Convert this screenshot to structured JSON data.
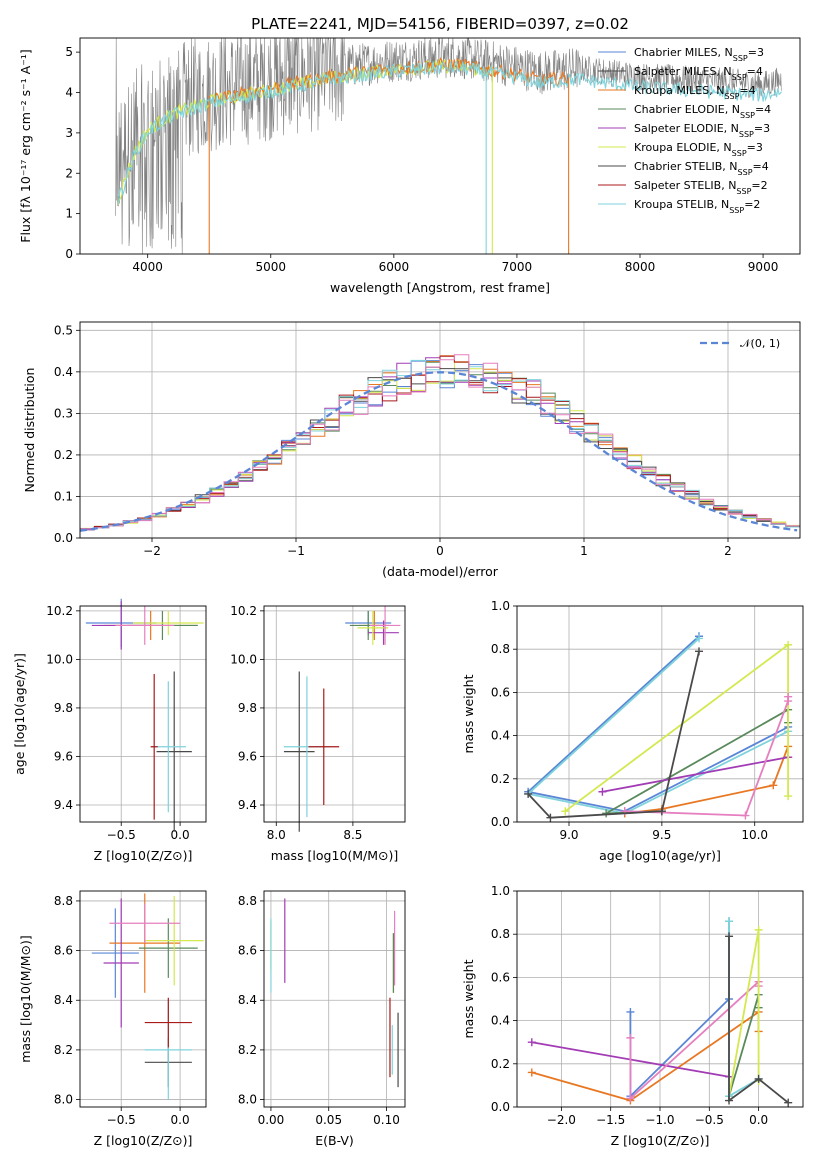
{
  "figure_title": "PLATE=2241, MJD=54156, FIBERID=0397, z=0.02",
  "colors": {
    "gray": "#808080",
    "series": [
      "#5b86d6",
      "#e87722",
      "#5a8a5c",
      "#a23cb5",
      "#d4e84f",
      "#4a4a4a",
      "#aa1a1a",
      "#7fd3dc",
      "#e57fbf"
    ],
    "normal": "#5b86d6",
    "grid": "#b0b0b0"
  },
  "chart_data": [
    {
      "id": "spectrum",
      "type": "line",
      "title": "PLATE=2241, MJD=54156, FIBERID=0397, z=0.02",
      "xlabel": "wavelength [Angstrom, rest frame]",
      "ylabel": "Flux [fλ 10⁻¹⁷ erg cm⁻² s⁻¹ A⁻¹]",
      "xlim": [
        3450,
        9300
      ],
      "ylim": [
        0,
        5.35
      ],
      "xticks": [
        4000,
        5000,
        6000,
        7000,
        8000,
        9000
      ],
      "yticks": [
        0,
        1,
        2,
        3,
        4,
        5
      ],
      "grid": false,
      "legend_position": "top-right",
      "data_range": [
        3740,
        9150
      ],
      "envelope": [
        [
          3750,
          2.3
        ],
        [
          3900,
          3.1
        ],
        [
          4000,
          3.3
        ],
        [
          4200,
          3.7
        ],
        [
          4500,
          4.0
        ],
        [
          5000,
          4.3
        ],
        [
          5500,
          4.6
        ],
        [
          6000,
          4.8
        ],
        [
          6500,
          4.9
        ],
        [
          6900,
          4.7
        ],
        [
          7200,
          4.5
        ],
        [
          7500,
          4.6
        ],
        [
          8000,
          4.4
        ],
        [
          8500,
          4.3
        ],
        [
          9000,
          4.2
        ],
        [
          9150,
          4.3
        ]
      ],
      "legend": [
        {
          "label": "Chabrier MILES, N",
          "sub": "SSP",
          "suffix": "=3",
          "color": "#5b86d6"
        },
        {
          "label": "Salpeter MILES, N",
          "sub": "SSP",
          "suffix": "=4",
          "color": "#4a4a4a"
        },
        {
          "label": "Kroupa MILES, N",
          "sub": "SSP",
          "suffix": "=4",
          "color": "#e87722"
        },
        {
          "label": "Chabrier ELODIE, N",
          "sub": "SSP",
          "suffix": "=4",
          "color": "#5a8a5c"
        },
        {
          "label": "Salpeter ELODIE, N",
          "sub": "SSP",
          "suffix": "=3",
          "color": "#a23cb5"
        },
        {
          "label": "Kroupa ELODIE, N",
          "sub": "SSP",
          "suffix": "=3",
          "color": "#d4e84f"
        },
        {
          "label": "Chabrier STELIB, N",
          "sub": "SSP",
          "suffix": "=4",
          "color": "#4a4a4a"
        },
        {
          "label": "Salpeter STELIB, N",
          "sub": "SSP",
          "suffix": "=2",
          "color": "#aa1a1a"
        },
        {
          "label": "Kroupa STELIB, N",
          "sub": "SSP",
          "suffix": "=2",
          "color": "#7fd3dc"
        }
      ],
      "model_drops": [
        {
          "x": 4500,
          "color": "#e87722"
        },
        {
          "x": 6800,
          "color": "#d4e84f"
        },
        {
          "x": 6750,
          "color": "#7fd3dc"
        },
        {
          "x": 7420,
          "color": "#e87722"
        }
      ]
    },
    {
      "id": "residuals",
      "type": "histogram",
      "xlabel": "(data-model)/error",
      "ylabel": "Normed distribution",
      "xlim": [
        -2.5,
        2.5
      ],
      "ylim": [
        0,
        0.52
      ],
      "xticks": [
        -2,
        -1,
        0,
        1,
        2
      ],
      "xtick_labels": [
        "−2",
        "−1",
        "0",
        "1",
        "2"
      ],
      "yticks": [
        0.0,
        0.1,
        0.2,
        0.3,
        0.4,
        0.5
      ],
      "ytick_labels": [
        "0.0",
        "0.1",
        "0.2",
        "0.3",
        "0.4",
        "0.5"
      ],
      "grid": true,
      "legend_position": "top-right",
      "normal_label": "𝒩(0, 1)",
      "bin_width": 0.1
    },
    {
      "id": "age_vs_Z",
      "type": "scatter",
      "xlabel": "Z [log10(Z/Z⊙)]",
      "ylabel": "age [log10(age/yr)]",
      "xlim": [
        -0.85,
        0.22
      ],
      "ylim": [
        9.33,
        10.22
      ],
      "xticks": [
        -0.5,
        0.0
      ],
      "xtick_labels": [
        "−0.5",
        "0.0"
      ],
      "yticks": [
        9.4,
        9.6,
        9.8,
        10.0,
        10.2
      ],
      "ytick_labels": [
        "9.4",
        "9.6",
        "9.8",
        "10.0",
        "10.2"
      ],
      "grid": true,
      "crosses": [
        {
          "x": -0.5,
          "y": 10.15,
          "xerr": 0.3,
          "yerr": 0.1,
          "color": "#5b86d6"
        },
        {
          "x": -0.25,
          "y": 10.14,
          "xerr": 0.4,
          "yerr": 0.06,
          "color": "#e87722"
        },
        {
          "x": -0.15,
          "y": 10.14,
          "xerr": 0.3,
          "yerr": 0.06,
          "color": "#5a8a5c"
        },
        {
          "x": -0.5,
          "y": 10.14,
          "xerr": 0.25,
          "yerr": 0.1,
          "color": "#a23cb5"
        },
        {
          "x": -0.1,
          "y": 10.15,
          "xerr": 0.3,
          "yerr": 0.05,
          "color": "#d4e84f"
        },
        {
          "x": -0.3,
          "y": 10.14,
          "xerr": 0.25,
          "yerr": 0.08,
          "color": "#e57fbf"
        },
        {
          "x": -0.05,
          "y": 9.62,
          "xerr": 0.15,
          "yerr": 0.33,
          "color": "#4a4a4a"
        },
        {
          "x": -0.1,
          "y": 9.64,
          "xerr": 0.15,
          "yerr": 0.27,
          "color": "#7fd3dc"
        },
        {
          "x": -0.22,
          "y": 9.64,
          "xerr": 0.03,
          "yerr": 0.3,
          "color": "#aa1a1a"
        }
      ]
    },
    {
      "id": "age_vs_mass",
      "type": "scatter",
      "xlabel": "mass [log10(M/M⊙)]",
      "ylabel": "",
      "xlim": [
        7.92,
        8.84
      ],
      "ylim": [
        9.33,
        10.22
      ],
      "xticks": [
        8.0,
        8.5
      ],
      "xtick_labels": [
        "8.0",
        "8.5"
      ],
      "yticks": [
        9.4,
        9.6,
        9.8,
        10.0,
        10.2
      ],
      "ytick_labels": [
        "9.4",
        "9.6",
        "9.8",
        "10.0",
        "10.2"
      ],
      "grid": true,
      "crosses": [
        {
          "x": 8.6,
          "y": 10.15,
          "xerr": 0.15,
          "yerr": 0.05,
          "color": "#5b86d6"
        },
        {
          "x": 8.64,
          "y": 10.14,
          "xerr": 0.1,
          "yerr": 0.06,
          "color": "#e87722"
        },
        {
          "x": 8.6,
          "y": 10.14,
          "xerr": 0.12,
          "yerr": 0.06,
          "color": "#5a8a5c"
        },
        {
          "x": 8.7,
          "y": 10.11,
          "xerr": 0.1,
          "yerr": 0.05,
          "color": "#a23cb5"
        },
        {
          "x": 8.63,
          "y": 10.13,
          "xerr": 0.1,
          "yerr": 0.07,
          "color": "#d4e84f"
        },
        {
          "x": 8.71,
          "y": 10.14,
          "xerr": 0.1,
          "yerr": 0.08,
          "color": "#e57fbf"
        },
        {
          "x": 8.15,
          "y": 9.62,
          "xerr": 0.1,
          "yerr": 0.33,
          "color": "#4a4a4a"
        },
        {
          "x": 8.2,
          "y": 9.64,
          "xerr": 0.15,
          "yerr": 0.29,
          "color": "#7fd3dc"
        },
        {
          "x": 8.31,
          "y": 9.64,
          "xerr": 0.1,
          "yerr": 0.24,
          "color": "#aa1a1a"
        }
      ]
    },
    {
      "id": "mass_weight_vs_age",
      "type": "line",
      "xlabel": "age  [log10(age/yr)]",
      "ylabel": "mass weight",
      "xlim": [
        8.72,
        10.26
      ],
      "ylim": [
        0,
        1.0
      ],
      "xticks": [
        9.0,
        9.5,
        10.0
      ],
      "xtick_labels": [
        "9.0",
        "9.5",
        "10.0"
      ],
      "yticks": [
        0.0,
        0.2,
        0.4,
        0.6,
        0.8,
        1.0
      ],
      "ytick_labels": [
        "0.0",
        "0.2",
        "0.4",
        "0.6",
        "0.8",
        "1.0"
      ],
      "grid": true,
      "series": [
        {
          "color": "#5b86d6",
          "x": [
            9.7,
            8.78,
            9.3,
            10.18
          ],
          "y": [
            0.86,
            0.14,
            0.05,
            0.44
          ]
        },
        {
          "color": "#7fd3dc",
          "x": [
            9.7,
            8.78,
            9.3,
            10.18
          ],
          "y": [
            0.85,
            0.13,
            0.04,
            0.42
          ]
        },
        {
          "color": "#e87722",
          "x": [
            9.3,
            9.5,
            10.1,
            10.18,
            10.18
          ],
          "y": [
            0.04,
            0.06,
            0.17,
            0.35,
            0.3
          ]
        },
        {
          "color": "#5a8a5c",
          "x": [
            9.5,
            9.2,
            10.18,
            10.18
          ],
          "y": [
            0.05,
            0.04,
            0.52,
            0.46
          ]
        },
        {
          "color": "#a23cb5",
          "x": [
            9.18,
            10.18
          ],
          "y": [
            0.14,
            0.3
          ]
        },
        {
          "color": "#d4e84f",
          "x": [
            8.98,
            10.18,
            10.18
          ],
          "y": [
            0.05,
            0.82,
            0.12
          ]
        },
        {
          "color": "#e57fbf",
          "x": [
            9.3,
            9.95,
            10.18,
            10.18
          ],
          "y": [
            0.05,
            0.03,
            0.56,
            0.58
          ]
        },
        {
          "color": "#4a4a4a",
          "x": [
            8.78,
            8.9,
            9.5,
            9.7
          ],
          "y": [
            0.13,
            0.02,
            0.05,
            0.79
          ]
        }
      ]
    },
    {
      "id": "mass_vs_Z",
      "type": "scatter",
      "xlabel": "Z [log10(Z/Z⊙)]",
      "ylabel": "mass [log10(M/M⊙)]",
      "xlim": [
        -0.85,
        0.22
      ],
      "ylim": [
        7.97,
        8.84
      ],
      "xticks": [
        -0.5,
        0.0
      ],
      "xtick_labels": [
        "−0.5",
        "0.0"
      ],
      "yticks": [
        8.0,
        8.2,
        8.4,
        8.6,
        8.8
      ],
      "ytick_labels": [
        "8.0",
        "8.2",
        "8.4",
        "8.6",
        "8.8"
      ],
      "grid": true,
      "crosses": [
        {
          "x": -0.55,
          "y": 8.59,
          "xerr": 0.2,
          "yerr": 0.18,
          "color": "#5b86d6"
        },
        {
          "x": -0.3,
          "y": 8.63,
          "xerr": 0.3,
          "yerr": 0.2,
          "color": "#e87722"
        },
        {
          "x": -0.1,
          "y": 8.61,
          "xerr": 0.25,
          "yerr": 0.12,
          "color": "#5a8a5c"
        },
        {
          "x": -0.5,
          "y": 8.55,
          "xerr": 0.15,
          "yerr": 0.26,
          "color": "#a23cb5"
        },
        {
          "x": -0.05,
          "y": 8.64,
          "xerr": 0.25,
          "yerr": 0.18,
          "color": "#d4e84f"
        },
        {
          "x": -0.3,
          "y": 8.71,
          "xerr": 0.3,
          "yerr": 0.08,
          "color": "#e57fbf"
        },
        {
          "x": -0.1,
          "y": 8.15,
          "xerr": 0.2,
          "yerr": 0.1,
          "color": "#4a4a4a"
        },
        {
          "x": -0.1,
          "y": 8.2,
          "xerr": 0.2,
          "yerr": 0.2,
          "color": "#7fd3dc"
        },
        {
          "x": -0.1,
          "y": 8.31,
          "xerr": 0.2,
          "yerr": 0.1,
          "color": "#aa1a1a"
        }
      ]
    },
    {
      "id": "mass_vs_ebv",
      "type": "scatter",
      "xlabel": "E(B-V)",
      "ylabel": "",
      "xlim": [
        -0.006,
        0.116
      ],
      "ylim": [
        7.97,
        8.84
      ],
      "xticks": [
        0.0,
        0.05,
        0.1
      ],
      "xtick_labels": [
        "0.00",
        "0.05",
        "0.10"
      ],
      "yticks": [
        8.0,
        8.2,
        8.4,
        8.6,
        8.8
      ],
      "ytick_labels": [
        "8.0",
        "8.2",
        "8.4",
        "8.6",
        "8.8"
      ],
      "grid": true,
      "crosses": [
        {
          "x": 0.0,
          "y": 8.62,
          "xerr": 0,
          "yerr": 0.1,
          "color": "#d4e84f"
        },
        {
          "x": 0.0,
          "y": 8.58,
          "xerr": 0,
          "yerr": 0.15,
          "color": "#7fd3dc"
        },
        {
          "x": 0.012,
          "y": 8.64,
          "xerr": 0,
          "yerr": 0.17,
          "color": "#a23cb5"
        },
        {
          "x": 0.107,
          "y": 8.61,
          "xerr": 0,
          "yerr": 0.15,
          "color": "#e57fbf"
        },
        {
          "x": 0.106,
          "y": 8.55,
          "xerr": 0,
          "yerr": 0.12,
          "color": "#e87722"
        },
        {
          "x": 0.103,
          "y": 8.25,
          "xerr": 0,
          "yerr": 0.16,
          "color": "#aa1a1a"
        },
        {
          "x": 0.105,
          "y": 8.2,
          "xerr": 0,
          "yerr": 0.1,
          "color": "#7fd3dc"
        },
        {
          "x": 0.11,
          "y": 8.2,
          "xerr": 0,
          "yerr": 0.15,
          "color": "#4a4a4a"
        },
        {
          "x": 0.106,
          "y": 8.55,
          "xerr": 0,
          "yerr": 0.12,
          "color": "#5a8a5c"
        }
      ]
    },
    {
      "id": "mass_weight_vs_Z",
      "type": "line",
      "xlabel": "Z [log10(Z/Z⊙)]",
      "ylabel": "mass weight",
      "xlim": [
        -2.45,
        0.45
      ],
      "ylim": [
        0,
        1.0
      ],
      "xticks": [
        -2.0,
        -1.5,
        -1.0,
        -0.5,
        0.0
      ],
      "xtick_labels": [
        "−2.0",
        "−1.5",
        "−1.0",
        "−0.5",
        "0.0"
      ],
      "yticks": [
        0.0,
        0.2,
        0.4,
        0.6,
        0.8,
        1.0
      ],
      "ytick_labels": [
        "0.0",
        "0.2",
        "0.4",
        "0.6",
        "0.8",
        "1.0"
      ],
      "grid": true,
      "series": [
        {
          "color": "#5b86d6",
          "x": [
            -1.3,
            -1.3,
            -0.3,
            -0.3
          ],
          "y": [
            0.44,
            0.05,
            0.5,
            0.86
          ]
        },
        {
          "color": "#e87722",
          "x": [
            -2.3,
            -1.3,
            0.0,
            0.0
          ],
          "y": [
            0.16,
            0.03,
            0.44,
            0.35
          ]
        },
        {
          "color": "#a23cb5",
          "x": [
            -2.3,
            -0.3
          ],
          "y": [
            0.3,
            0.14
          ]
        },
        {
          "color": "#e57fbf",
          "x": [
            -1.3,
            -1.3,
            0.0,
            0.0
          ],
          "y": [
            0.32,
            0.04,
            0.58,
            0.56
          ]
        },
        {
          "color": "#5a8a5c",
          "x": [
            -0.3,
            0.0,
            0.0
          ],
          "y": [
            0.05,
            0.52,
            0.46
          ]
        },
        {
          "color": "#d4e84f",
          "x": [
            -0.3,
            0.0,
            0.0
          ],
          "y": [
            0.05,
            0.82,
            0.12
          ]
        },
        {
          "color": "#7fd3dc",
          "x": [
            -0.3,
            -0.3,
            0.0
          ],
          "y": [
            0.86,
            0.05,
            0.13
          ]
        },
        {
          "color": "#4a4a4a",
          "x": [
            -0.3,
            -0.3,
            0.0,
            0.3
          ],
          "y": [
            0.79,
            0.03,
            0.13,
            0.02
          ]
        }
      ]
    }
  ]
}
